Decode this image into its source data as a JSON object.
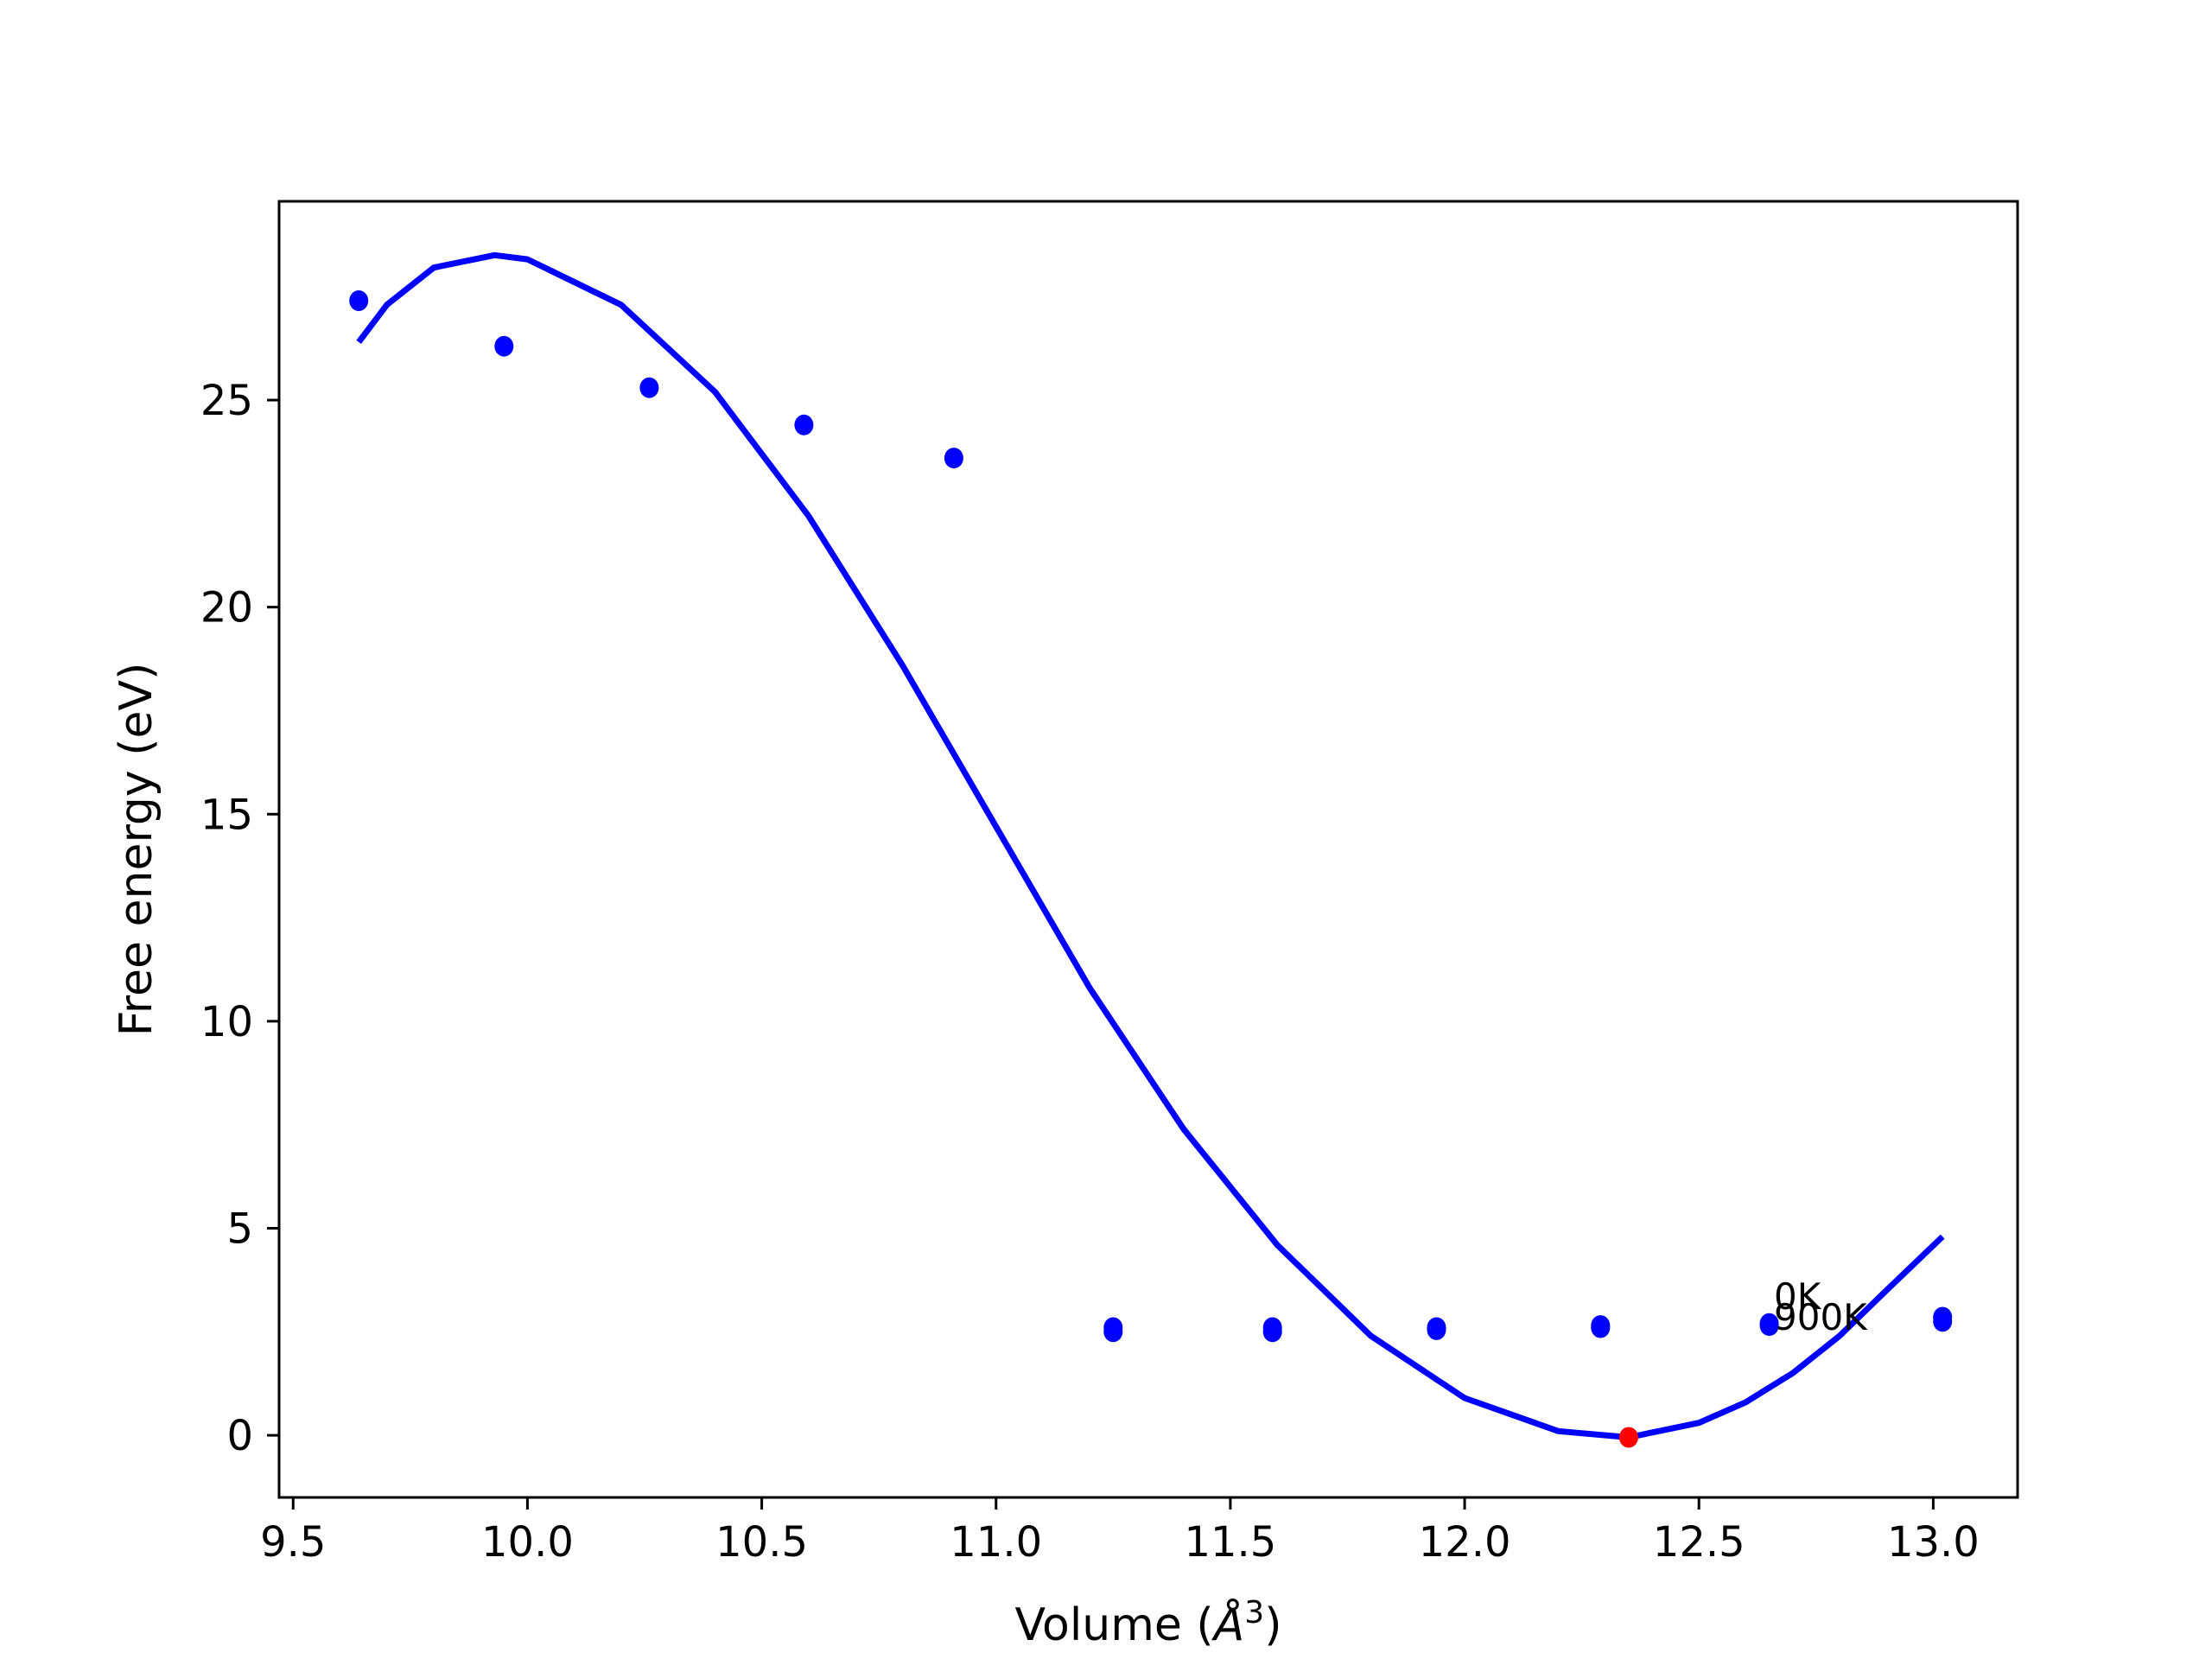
{
  "chart_data": {
    "type": "scatter",
    "xlabel_prefix": "Volume (",
    "xlabel_unit": "Å",
    "xlabel_power": "3",
    "xlabel_suffix": ")",
    "ylabel": "Free energy (eV)",
    "xlim": [
      9.47,
      13.18
    ],
    "ylim": [
      -1.5,
      29.8
    ],
    "xticks": [
      9.5,
      10.0,
      10.5,
      11.0,
      11.5,
      12.0,
      12.5,
      13.0
    ],
    "xtick_labels": [
      "9.5",
      "10.0",
      "10.5",
      "11.0",
      "11.5",
      "12.0",
      "12.5",
      "13.0"
    ],
    "yticks": [
      0,
      5,
      10,
      15,
      20,
      25
    ],
    "ytick_labels": [
      "0",
      "5",
      "10",
      "15",
      "20",
      "25"
    ],
    "grid": false,
    "series": [
      {
        "kind": "points",
        "color": "#0000ff",
        "points": [
          [
            9.64,
            27.4
          ],
          [
            9.95,
            26.3
          ],
          [
            10.26,
            25.3
          ],
          [
            10.59,
            24.4
          ],
          [
            10.91,
            23.6
          ],
          [
            11.25,
            2.5
          ],
          [
            11.59,
            2.5
          ],
          [
            11.94,
            2.55
          ],
          [
            12.29,
            2.6
          ],
          [
            12.65,
            2.7
          ],
          [
            13.02,
            2.75
          ],
          [
            11.25,
            2.6
          ],
          [
            11.59,
            2.6
          ],
          [
            11.94,
            2.6
          ],
          [
            12.29,
            2.65
          ],
          [
            12.65,
            2.65
          ],
          [
            13.02,
            2.85
          ]
        ]
      },
      {
        "kind": "fit-curve",
        "color": "#0000ff",
        "x": [
          9.64,
          9.7,
          9.8,
          9.93,
          10.0,
          10.2,
          10.4,
          10.6,
          10.8,
          11.0,
          11.2,
          11.4,
          11.6,
          11.8,
          12.0,
          12.2,
          12.35,
          12.5,
          12.6,
          12.7,
          12.8,
          12.9,
          13.02
        ],
        "y": [
          26.4,
          27.3,
          28.2,
          28.5,
          28.4,
          27.3,
          25.2,
          22.2,
          18.6,
          14.7,
          10.8,
          7.4,
          4.6,
          2.4,
          0.9,
          0.1,
          -0.05,
          0.3,
          0.8,
          1.5,
          2.4,
          3.5,
          4.8
        ]
      },
      {
        "kind": "minimum-point",
        "color": "#ff0000",
        "points": [
          [
            12.35,
            -0.05
          ]
        ]
      }
    ],
    "annotations": [
      {
        "text": "0K",
        "x": 12.66,
        "y": 3.05
      },
      {
        "text": "900K",
        "x": 12.66,
        "y": 2.55
      }
    ]
  }
}
